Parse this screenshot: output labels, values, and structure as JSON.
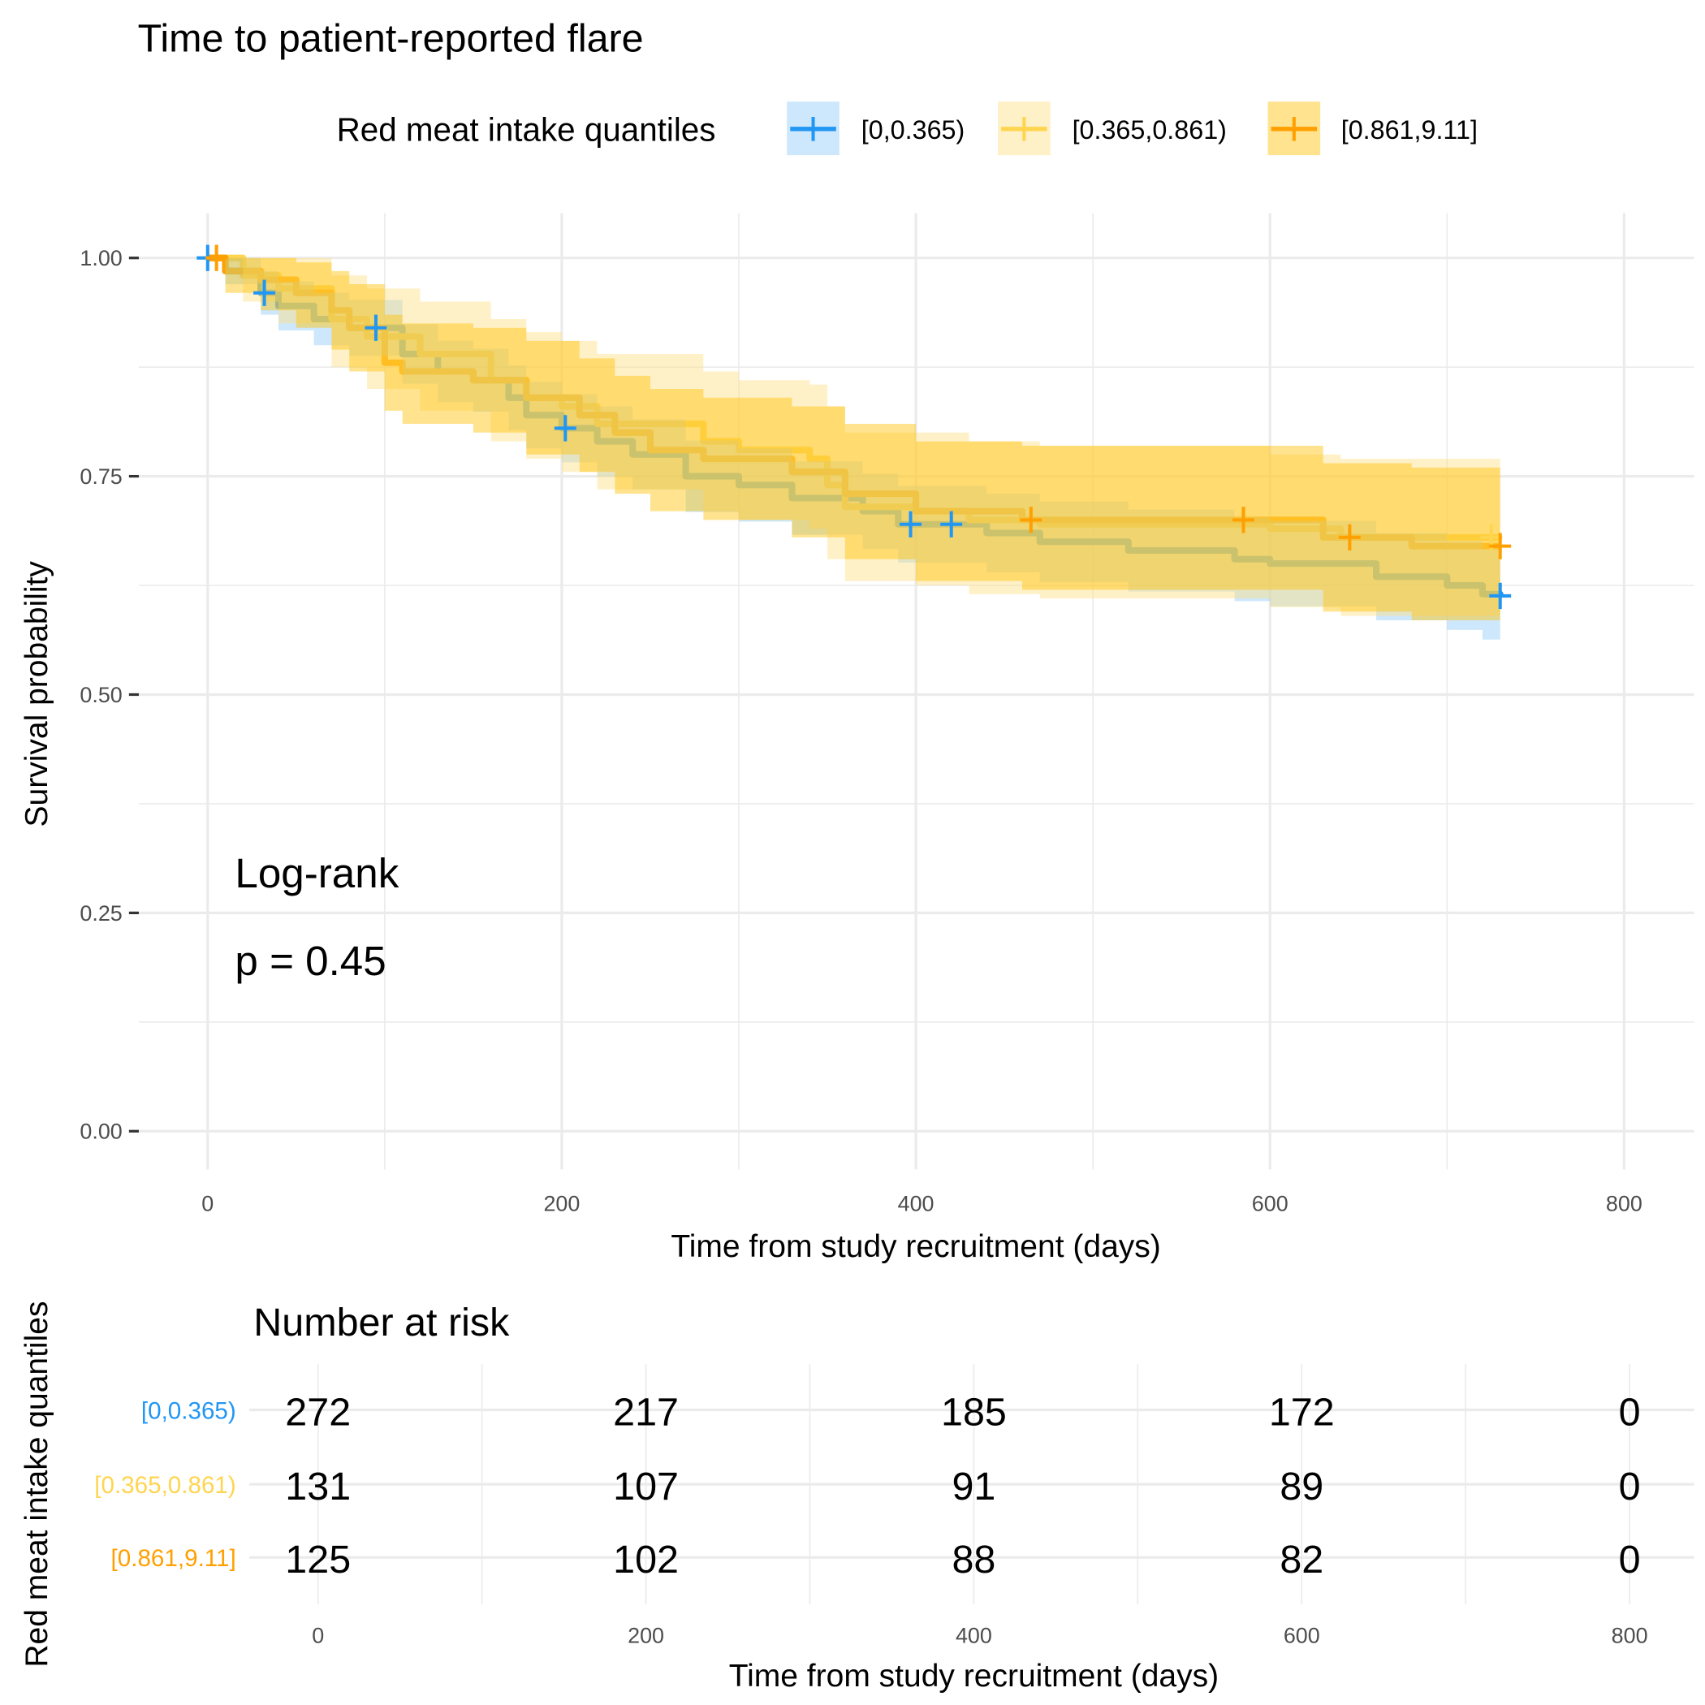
{
  "chart_data": {
    "type": "line",
    "subtype": "kaplan-meier step curves with confidence bands",
    "title": "Time to patient-reported flare",
    "xlabel": "Time from study recruitment (days)",
    "ylabel": "Survival probability",
    "xlim": [
      0,
      800
    ],
    "ylim": [
      0,
      1
    ],
    "x_ticks": [
      "0",
      "200",
      "400",
      "600",
      "800"
    ],
    "y_ticks": [
      "0.00",
      "0.25",
      "0.50",
      "0.75",
      "1.00"
    ],
    "x_tick_values": [
      0,
      200,
      400,
      600,
      800
    ],
    "y_tick_values": [
      0,
      0.25,
      0.5,
      0.75,
      1
    ],
    "grid": true,
    "legend": {
      "title": "Red meat intake quantiles",
      "placement": "top",
      "labels": [
        "[0,0.365)",
        "[0.365,0.861)",
        "[0.861,9.11]"
      ]
    },
    "annotation": {
      "line1": "Log-rank",
      "line2": "p = 0.45"
    },
    "series": [
      {
        "name": "[0,0.365)",
        "color": "#2196F3",
        "band_color": "#90CAF9",
        "time": [
          0,
          10,
          30,
          40,
          60,
          80,
          110,
          130,
          150,
          170,
          180,
          200,
          220,
          240,
          270,
          300,
          330,
          370,
          390,
          440,
          470,
          520,
          580,
          600,
          660,
          700,
          720,
          730
        ],
        "surv": [
          1,
          0.985,
          0.96,
          0.945,
          0.93,
          0.92,
          0.89,
          0.87,
          0.86,
          0.84,
          0.82,
          0.805,
          0.79,
          0.775,
          0.75,
          0.74,
          0.725,
          0.71,
          0.695,
          0.685,
          0.675,
          0.665,
          0.655,
          0.65,
          0.635,
          0.625,
          0.615,
          0.613
        ],
        "lower": [
          1,
          0.97,
          0.935,
          0.917,
          0.9,
          0.888,
          0.856,
          0.835,
          0.824,
          0.803,
          0.782,
          0.766,
          0.75,
          0.735,
          0.709,
          0.698,
          0.683,
          0.667,
          0.651,
          0.64,
          0.629,
          0.618,
          0.607,
          0.601,
          0.585,
          0.574,
          0.563,
          0.558
        ],
        "upper": [
          1,
          1,
          0.985,
          0.973,
          0.96,
          0.952,
          0.924,
          0.905,
          0.896,
          0.877,
          0.858,
          0.844,
          0.83,
          0.815,
          0.791,
          0.782,
          0.767,
          0.753,
          0.739,
          0.73,
          0.721,
          0.712,
          0.703,
          0.699,
          0.685,
          0.676,
          0.667,
          0.668
        ],
        "censor_times": [
          0,
          32,
          95,
          202,
          397,
          420,
          730
        ]
      },
      {
        "name": "[0.365,0.861)",
        "color": "#FFD54F",
        "band_color": "#FFE082",
        "time": [
          0,
          20,
          40,
          70,
          90,
          120,
          160,
          180,
          200,
          220,
          280,
          300,
          340,
          350,
          360,
          400,
          430,
          470,
          600,
          640,
          730
        ],
        "surv": [
          1,
          0.98,
          0.965,
          0.93,
          0.91,
          0.89,
          0.86,
          0.84,
          0.83,
          0.81,
          0.79,
          0.78,
          0.77,
          0.74,
          0.715,
          0.71,
          0.7,
          0.695,
          0.69,
          0.68,
          0.68
        ],
        "lower": [
          1,
          0.95,
          0.925,
          0.875,
          0.85,
          0.825,
          0.79,
          0.77,
          0.755,
          0.735,
          0.71,
          0.7,
          0.69,
          0.655,
          0.63,
          0.625,
          0.615,
          0.61,
          0.6,
          0.59,
          0.59
        ],
        "upper": [
          1,
          1,
          1,
          0.98,
          0.965,
          0.95,
          0.93,
          0.915,
          0.905,
          0.89,
          0.87,
          0.86,
          0.855,
          0.83,
          0.8,
          0.8,
          0.79,
          0.785,
          0.775,
          0.77,
          0.77
        ],
        "censor_times": [
          725
        ]
      },
      {
        "name": "[0.861,9.11]",
        "color": "#FFA000",
        "band_color": "#FFC107",
        "time": [
          0,
          10,
          30,
          50,
          70,
          80,
          100,
          110,
          150,
          180,
          210,
          230,
          250,
          280,
          330,
          360,
          400,
          460,
          630,
          680,
          730
        ],
        "surv": [
          1,
          0.985,
          0.975,
          0.96,
          0.94,
          0.92,
          0.88,
          0.87,
          0.86,
          0.84,
          0.82,
          0.8,
          0.78,
          0.77,
          0.755,
          0.73,
          0.71,
          0.7,
          0.68,
          0.67,
          0.67
        ],
        "lower": [
          1,
          0.96,
          0.94,
          0.92,
          0.895,
          0.87,
          0.825,
          0.81,
          0.8,
          0.775,
          0.755,
          0.73,
          0.71,
          0.7,
          0.68,
          0.655,
          0.63,
          0.62,
          0.595,
          0.585,
          0.58
        ],
        "upper": [
          1,
          1,
          1,
          0.995,
          0.985,
          0.97,
          0.935,
          0.925,
          0.92,
          0.905,
          0.885,
          0.865,
          0.85,
          0.84,
          0.83,
          0.81,
          0.79,
          0.785,
          0.765,
          0.76,
          0.76
        ],
        "censor_times": [
          5,
          465,
          585,
          645,
          730
        ]
      }
    ],
    "risk_table": {
      "title": "Number at risk",
      "ylabel": "Red meat intake quantiles",
      "xlabel": "Time from study recruitment (days)",
      "x_ticks": [
        "0",
        "200",
        "400",
        "600",
        "800"
      ],
      "rows": [
        {
          "label": "[0,0.365)",
          "color": "#2196F3",
          "values": [
            "272",
            "217",
            "185",
            "172",
            "0"
          ]
        },
        {
          "label": "[0.365,0.861)",
          "color": "#FFD54F",
          "values": [
            "131",
            "107",
            "91",
            "89",
            "0"
          ]
        },
        {
          "label": "[0.861,9.11]",
          "color": "#FFA000",
          "values": [
            "125",
            "102",
            "88",
            "82",
            "0"
          ]
        }
      ]
    }
  }
}
